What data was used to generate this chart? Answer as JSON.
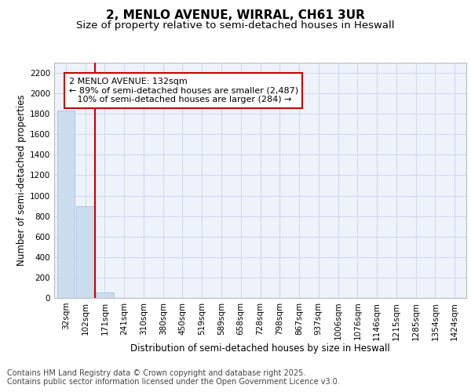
{
  "title1": "2, MENLO AVENUE, WIRRAL, CH61 3UR",
  "title2": "Size of property relative to semi-detached houses in Heswall",
  "xlabel": "Distribution of semi-detached houses by size in Heswall",
  "ylabel": "Number of semi-detached properties",
  "footer1": "Contains HM Land Registry data © Crown copyright and database right 2025.",
  "footer2": "Contains public sector information licensed under the Open Government Licence v3.0.",
  "categories": [
    "32sqm",
    "102sqm",
    "171sqm",
    "241sqm",
    "310sqm",
    "380sqm",
    "450sqm",
    "519sqm",
    "589sqm",
    "658sqm",
    "728sqm",
    "798sqm",
    "867sqm",
    "937sqm",
    "1006sqm",
    "1076sqm",
    "1146sqm",
    "1215sqm",
    "1285sqm",
    "1354sqm",
    "1424sqm"
  ],
  "values": [
    1830,
    900,
    50,
    0,
    0,
    0,
    0,
    0,
    0,
    0,
    0,
    0,
    0,
    0,
    0,
    0,
    0,
    0,
    0,
    0,
    0
  ],
  "bar_color": "#ccdded",
  "bar_edge_color": "#aac8e0",
  "grid_color": "#d0d8e8",
  "annotation_line1": "2 MENLO AVENUE: 132sqm",
  "annotation_line2": "← 89% of semi-detached houses are smaller (2,487)",
  "annotation_line3": "   10% of semi-detached houses are larger (284) →",
  "vline_x": 1.5,
  "vline_color": "#cc0000",
  "annotation_box_edgecolor": "#cc0000",
  "ylim": [
    0,
    2300
  ],
  "yticks": [
    0,
    200,
    400,
    600,
    800,
    1000,
    1200,
    1400,
    1600,
    1800,
    2000,
    2200
  ],
  "background_color": "#ffffff",
  "plot_bg_color": "#eef2fa",
  "title_fontsize": 11,
  "subtitle_fontsize": 9.5,
  "axis_label_fontsize": 8.5,
  "tick_fontsize": 7.5,
  "annotation_fontsize": 8,
  "footer_fontsize": 7
}
